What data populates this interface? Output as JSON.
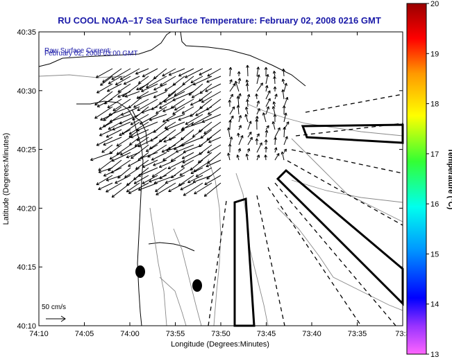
{
  "chart_data": {
    "type": "map",
    "title": "RU COOL  NOAA–17  Sea Surface Temperature:  February 02, 2008 0216 GMT",
    "annotation_line1": "Raw Surface Current:",
    "annotation_line2": "February 02, 2008 03:00 GMT",
    "xlabel": "Longitude (Degrees:Minutes)",
    "ylabel": "Latitude (Degrees:Minutes)",
    "x_tick_labels": [
      "74:10",
      "74:05",
      "74:00",
      "73:55",
      "73:50",
      "73:45",
      "73:40",
      "73:35",
      "73:3"
    ],
    "y_tick_labels": [
      "40:35",
      "40:30",
      "40:25",
      "40:20",
      "40:15",
      "40:10"
    ],
    "scale_label": "50 cm/s",
    "colorbar": {
      "label": "Temperature (°C)",
      "ticks": [
        "20",
        "19",
        "18",
        "17",
        "16",
        "15",
        "14",
        "13"
      ],
      "min": 13,
      "max": 20
    }
  }
}
